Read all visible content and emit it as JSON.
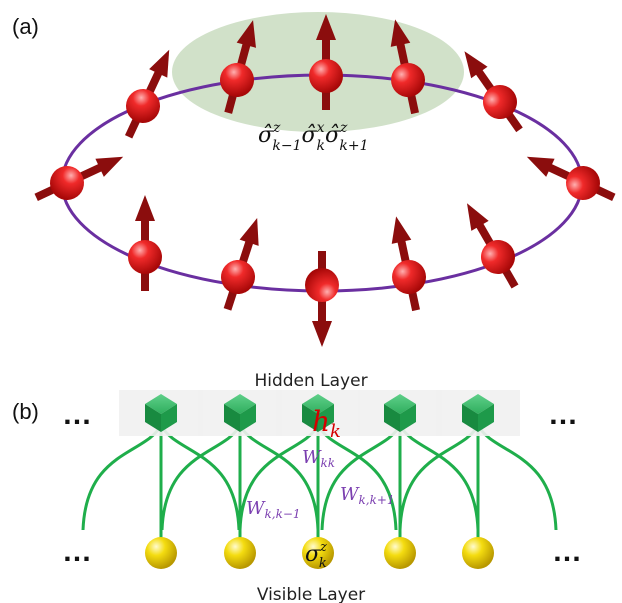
{
  "panel_a": {
    "label": "(a)",
    "operator": {
      "s1": "σ̂",
      "z1": "z",
      "k1": "k−1",
      "s2": "σ̂",
      "x2": "x",
      "k2": "k",
      "s3": "σ̂",
      "z3": "z",
      "k3": "k+1"
    },
    "colors": {
      "ring": "#6a2fa0",
      "sphere": "#e01f1f",
      "arrow": "#8b0d0d",
      "highlight": "#c9dcc0"
    }
  },
  "panel_b": {
    "label": "(b)",
    "hidden_layer_label": "Hidden Layer",
    "visible_layer_label": "Visible Layer",
    "ellipsis": "…",
    "hidden_unit": {
      "main": "h",
      "sub": "k"
    },
    "visible_unit": {
      "main": "σ",
      "sup": "z",
      "sub": "k"
    },
    "weight_kk": {
      "main": "W",
      "sub": "kk"
    },
    "weight_km1": {
      "main": "W",
      "sub": "k,k−1"
    },
    "weight_kp1": {
      "main": "W",
      "sub": "k,k+1"
    },
    "colors": {
      "cube": "#1e9a4a",
      "edges": "#1fae4b",
      "visible": "#f2d400",
      "weight_text": "#7b3fb0",
      "hidden_text": "#d40000"
    }
  }
}
